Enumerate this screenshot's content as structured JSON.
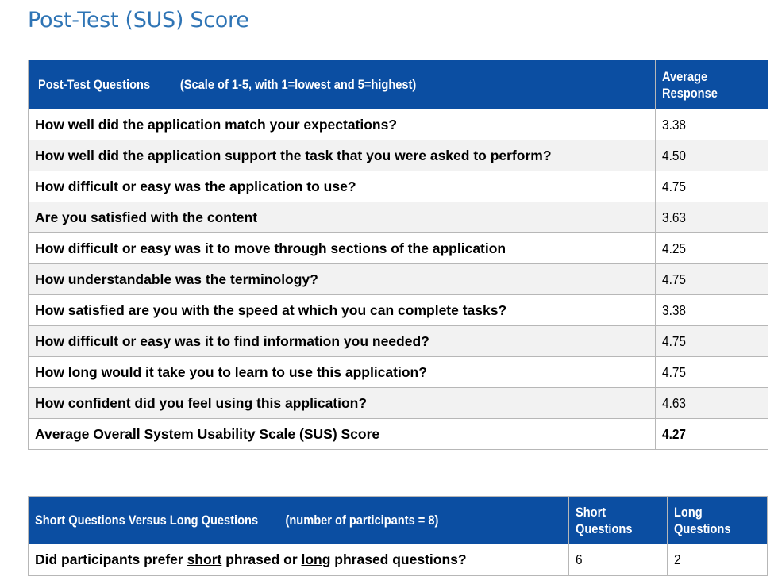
{
  "page_title": "Post-Test (SUS) Score",
  "sus_table": {
    "header_questions": "Post-Test Questions",
    "header_scale": "(Scale of 1-5, with 1=lowest and 5=highest)",
    "header_avg_line1": "Average",
    "header_avg_line2": "Response",
    "rows": [
      {
        "question": "How well did the application match your expectations?",
        "value": "3.38"
      },
      {
        "question": "How well did the application support the task that you were asked to perform?",
        "value": "4.50"
      },
      {
        "question": "How difficult or easy was the application to use?",
        "value": "4.75"
      },
      {
        "question": "Are you satisfied with the content",
        "value": "3.63"
      },
      {
        "question": "How difficult or easy was it to move through sections of the application",
        "value": "4.25"
      },
      {
        "question": "How understandable was the terminology?",
        "value": "4.75"
      },
      {
        "question": "How satisfied are you with the speed at which you can complete tasks?",
        "value": "3.38"
      },
      {
        "question": "How difficult or easy was it to find information you needed?",
        "value": "4.75"
      },
      {
        "question": "How long would it take you to learn to use this application?",
        "value": "4.75"
      },
      {
        "question": "How confident did you feel using this application?",
        "value": "4.63"
      }
    ],
    "summary_label": "Average Overall System Usability Scale (SUS) Score",
    "summary_value": "4.27"
  },
  "length_table": {
    "header_title": "Short Questions Versus Long Questions",
    "header_note": "(number of participants = 8)",
    "header_short_line1": "Short",
    "header_short_line2": "Questions",
    "header_long_line1": "Long",
    "header_long_line2": "Questions",
    "question_prefix": "Did participants prefer ",
    "question_short": "short",
    "question_mid": " phrased or ",
    "question_long": "long",
    "question_suffix": " phrased questions?",
    "short_value": "6",
    "long_value": "2"
  }
}
